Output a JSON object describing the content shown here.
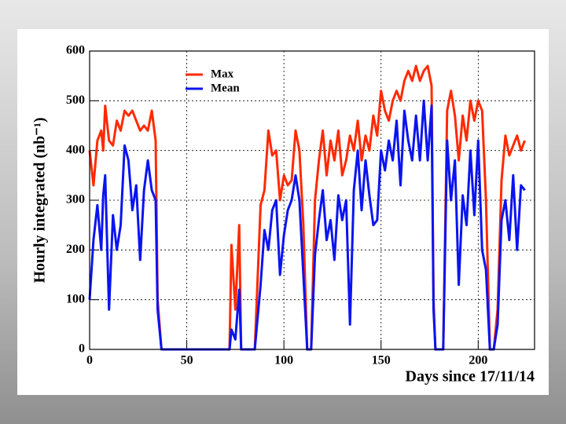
{
  "chart_data": {
    "type": "line",
    "ylabel": "Hourly integrated (nb⁻¹)",
    "xlabel": "Days since 17/11/14",
    "x": [
      0,
      2,
      4,
      6,
      7,
      8,
      10,
      12,
      14,
      16,
      18,
      20,
      22,
      24,
      26,
      28,
      30,
      32,
      34,
      35,
      37,
      72,
      73,
      75,
      77,
      78,
      85,
      88,
      90,
      92,
      94,
      96,
      98,
      100,
      102,
      104,
      106,
      108,
      110,
      112,
      114,
      116,
      118,
      120,
      122,
      124,
      126,
      128,
      130,
      132,
      134,
      136,
      138,
      140,
      142,
      144,
      146,
      148,
      150,
      152,
      154,
      156,
      158,
      160,
      162,
      164,
      166,
      168,
      170,
      172,
      174,
      176,
      177,
      178,
      182,
      184,
      186,
      188,
      190,
      192,
      194,
      196,
      198,
      200,
      202,
      204,
      206,
      208,
      210,
      212,
      214,
      216,
      218,
      220,
      222,
      224
    ],
    "series": [
      {
        "name": "Max",
        "color": "#ff2a00",
        "values": [
          400,
          330,
          420,
          440,
          400,
          490,
          420,
          410,
          460,
          440,
          480,
          470,
          480,
          460,
          440,
          450,
          440,
          480,
          420,
          100,
          0,
          0,
          210,
          80,
          250,
          0,
          0,
          290,
          320,
          440,
          390,
          400,
          300,
          350,
          330,
          340,
          440,
          400,
          250,
          0,
          0,
          300,
          380,
          440,
          350,
          420,
          380,
          440,
          350,
          380,
          430,
          400,
          460,
          380,
          430,
          400,
          470,
          430,
          520,
          480,
          460,
          500,
          520,
          500,
          540,
          560,
          540,
          570,
          540,
          560,
          570,
          530,
          100,
          0,
          0,
          480,
          520,
          470,
          380,
          470,
          420,
          500,
          460,
          500,
          480,
          300,
          0,
          0,
          80,
          340,
          430,
          390,
          410,
          430,
          400,
          420
        ]
      },
      {
        "name": "Mean",
        "color": "#0a14f0",
        "values": [
          100,
          220,
          290,
          200,
          310,
          350,
          80,
          270,
          200,
          250,
          410,
          380,
          280,
          330,
          180,
          320,
          380,
          320,
          300,
          80,
          0,
          0,
          40,
          20,
          120,
          0,
          0,
          130,
          240,
          200,
          280,
          300,
          150,
          230,
          280,
          300,
          350,
          300,
          150,
          0,
          0,
          190,
          260,
          320,
          220,
          260,
          180,
          310,
          260,
          300,
          50,
          320,
          400,
          280,
          380,
          310,
          250,
          260,
          400,
          360,
          420,
          380,
          460,
          330,
          480,
          420,
          380,
          470,
          380,
          500,
          380,
          490,
          80,
          0,
          0,
          420,
          300,
          380,
          130,
          310,
          250,
          400,
          270,
          420,
          200,
          160,
          0,
          0,
          50,
          260,
          300,
          220,
          350,
          200,
          330,
          320
        ]
      }
    ],
    "xlim": [
      0,
      229
    ],
    "ylim": [
      0,
      600
    ],
    "xticks": [
      0,
      50,
      100,
      150,
      200
    ],
    "yticks": [
      0,
      100,
      200,
      300,
      400,
      500,
      600
    ],
    "grid": true,
    "legend": "upper left"
  }
}
